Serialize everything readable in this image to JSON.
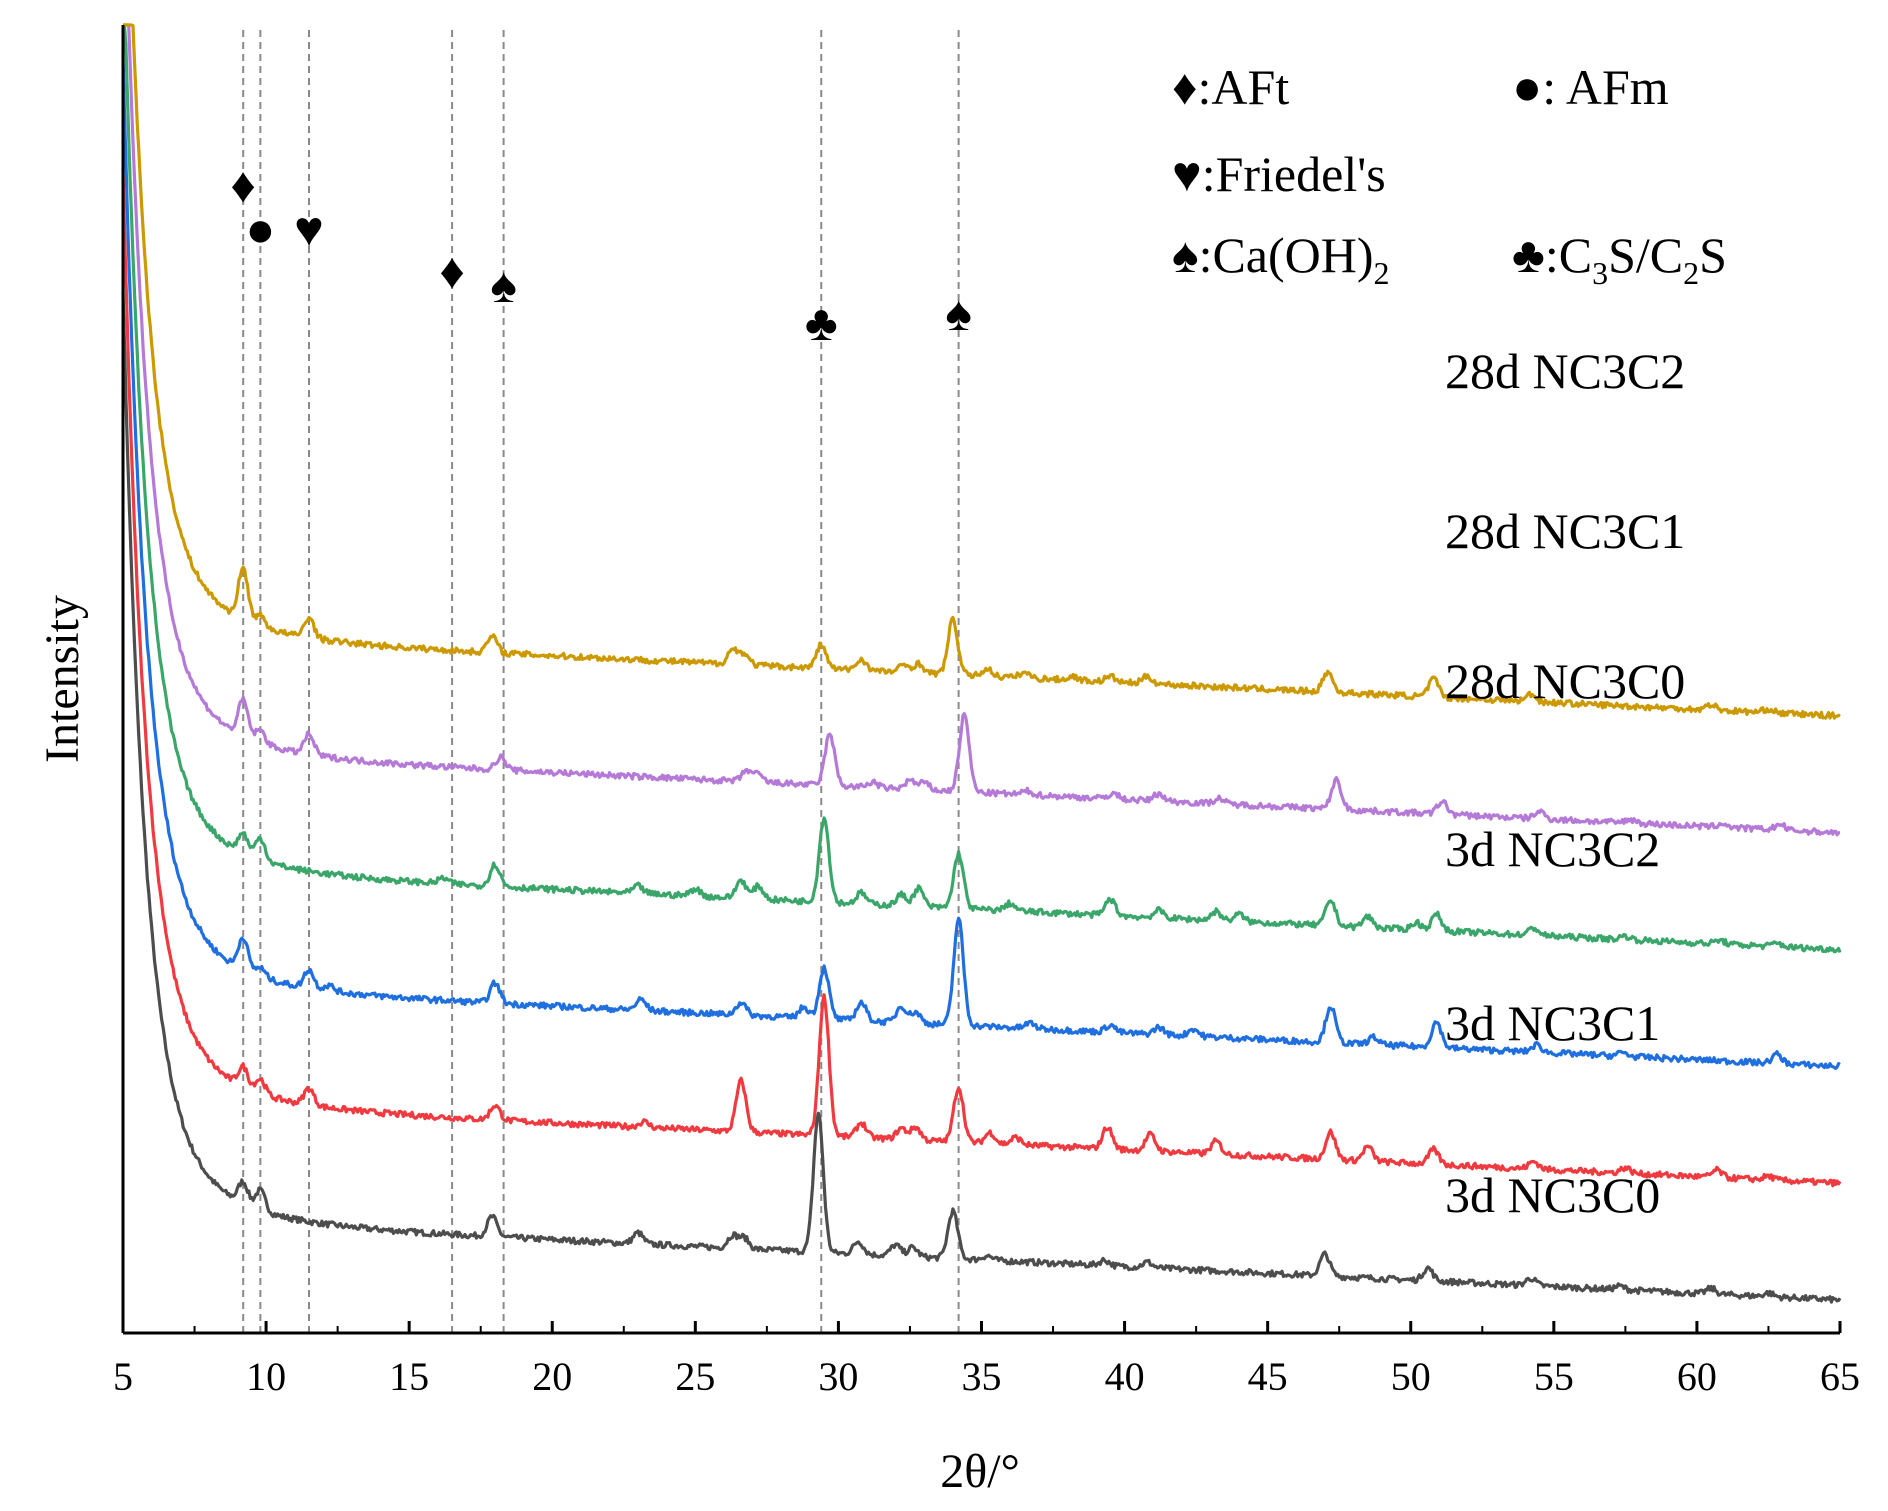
{
  "chart_data": {
    "type": "line",
    "title": "",
    "xlabel": "2θ/°",
    "ylabel": "Intensity",
    "xlim": [
      5,
      65
    ],
    "xticks": [
      "5",
      "10",
      "15",
      "20",
      "25",
      "30",
      "35",
      "40",
      "45",
      "50",
      "55",
      "60",
      "65"
    ],
    "reference_lines": [
      9.2,
      9.8,
      11.5,
      16.5,
      18.3,
      29.4,
      34.2
    ],
    "legend": [
      {
        "symbol": "♦",
        "label": ":AFt"
      },
      {
        "symbol": "●",
        "label": ": AFm"
      },
      {
        "symbol": "♥",
        "label": ":Friedel's"
      },
      {
        "symbol": "♠",
        "label": ":Ca(OH)",
        "subscript": "2"
      },
      {
        "symbol": "♣",
        "label": ":C",
        "sub1": "3",
        "mid": "S/C",
        "sub2": "2",
        "tail": "S"
      }
    ],
    "peak_markers": [
      {
        "symbol": "♦",
        "x": 9.2
      },
      {
        "symbol": "●",
        "x": 9.8
      },
      {
        "symbol": "♥",
        "x": 11.5
      },
      {
        "symbol": "♦",
        "x": 16.5
      },
      {
        "symbol": "♠",
        "x": 18.3
      },
      {
        "symbol": "♣",
        "x": 29.4
      },
      {
        "symbol": "♠",
        "x": 34.2
      }
    ],
    "series": [
      {
        "name": "3d NC3C0",
        "color": "#4d4d4d",
        "offset": 0,
        "peaks": [
          [
            9.2,
            0.6
          ],
          [
            9.8,
            0.55
          ],
          [
            17.9,
            0.55
          ],
          [
            23.0,
            0.3
          ],
          [
            26.3,
            0.35
          ],
          [
            26.7,
            0.3
          ],
          [
            29.3,
            3.8
          ],
          [
            30.7,
            0.35
          ],
          [
            32.0,
            0.3
          ],
          [
            32.6,
            0.25
          ],
          [
            34.0,
            1.3
          ],
          [
            35.2,
            0.12
          ],
          [
            39.3,
            0.15
          ],
          [
            40.8,
            0.15
          ],
          [
            47.0,
            0.6
          ],
          [
            50.6,
            0.35
          ],
          [
            54.2,
            0.2
          ],
          [
            57.3,
            0.1
          ],
          [
            60.5,
            0.15
          ],
          [
            62.5,
            0.1
          ]
        ]
      },
      {
        "name": "3d NC3C1",
        "color": "#f03a3f",
        "offset": 3.2,
        "peaks": [
          [
            9.2,
            0.55
          ],
          [
            9.8,
            0.4
          ],
          [
            11.5,
            0.45
          ],
          [
            18.0,
            0.4
          ],
          [
            23.2,
            0.15
          ],
          [
            26.6,
            1.4
          ],
          [
            29.5,
            3.8
          ],
          [
            30.8,
            0.4
          ],
          [
            32.2,
            0.3
          ],
          [
            32.7,
            0.35
          ],
          [
            34.2,
            1.5
          ],
          [
            35.3,
            0.3
          ],
          [
            36.2,
            0.2
          ],
          [
            39.4,
            0.6
          ],
          [
            40.9,
            0.45
          ],
          [
            43.2,
            0.35
          ],
          [
            47.2,
            0.75
          ],
          [
            48.5,
            0.4
          ],
          [
            50.8,
            0.4
          ],
          [
            54.3,
            0.2
          ],
          [
            57.5,
            0.15
          ],
          [
            60.7,
            0.2
          ],
          [
            62.5,
            0.1
          ]
        ]
      },
      {
        "name": "3d NC3C2",
        "color": "#1f6fe0",
        "offset": 6.4,
        "peaks": [
          [
            9.2,
            0.9
          ],
          [
            9.8,
            0.25
          ],
          [
            11.5,
            0.5
          ],
          [
            12.2,
            0.15
          ],
          [
            18.0,
            0.55
          ],
          [
            23.1,
            0.3
          ],
          [
            26.6,
            0.35
          ],
          [
            28.8,
            0.3
          ],
          [
            29.5,
            1.4
          ],
          [
            30.8,
            0.5
          ],
          [
            32.2,
            0.45
          ],
          [
            32.7,
            0.3
          ],
          [
            34.2,
            2.9
          ],
          [
            36.7,
            0.15
          ],
          [
            39.5,
            0.2
          ],
          [
            41.2,
            0.2
          ],
          [
            42.4,
            0.2
          ],
          [
            47.2,
            1.0
          ],
          [
            48.7,
            0.2
          ],
          [
            50.9,
            0.7
          ],
          [
            54.4,
            0.2
          ],
          [
            57.4,
            0.1
          ],
          [
            62.8,
            0.25
          ]
        ]
      },
      {
        "name": "28d NC3C0",
        "color": "#3aa66a",
        "offset": 9.6,
        "peaks": [
          [
            9.2,
            0.55
          ],
          [
            9.8,
            0.6
          ],
          [
            16.2,
            0.15
          ],
          [
            18.0,
            0.6
          ],
          [
            23.0,
            0.2
          ],
          [
            25.0,
            0.2
          ],
          [
            26.6,
            0.5
          ],
          [
            27.2,
            0.35
          ],
          [
            29.5,
            2.3
          ],
          [
            30.8,
            0.3
          ],
          [
            32.2,
            0.3
          ],
          [
            32.8,
            0.5
          ],
          [
            34.2,
            1.5
          ],
          [
            36.0,
            0.2
          ],
          [
            39.5,
            0.45
          ],
          [
            41.2,
            0.2
          ],
          [
            43.2,
            0.25
          ],
          [
            44.0,
            0.2
          ],
          [
            47.2,
            0.7
          ],
          [
            48.5,
            0.3
          ],
          [
            50.2,
            0.2
          ],
          [
            50.9,
            0.45
          ],
          [
            54.3,
            0.2
          ],
          [
            57.5,
            0.1
          ],
          [
            60.8,
            0.1
          ],
          [
            62.8,
            0.1
          ]
        ]
      },
      {
        "name": "28d NC3C1",
        "color": "#b57ad8",
        "offset": 12.8,
        "peaks": [
          [
            9.2,
            1.0
          ],
          [
            9.8,
            0.35
          ],
          [
            11.5,
            0.55
          ],
          [
            18.2,
            0.35
          ],
          [
            26.8,
            0.3
          ],
          [
            27.2,
            0.2
          ],
          [
            29.7,
            1.4
          ],
          [
            31.2,
            0.15
          ],
          [
            32.5,
            0.25
          ],
          [
            33.0,
            0.2
          ],
          [
            34.4,
            2.1
          ],
          [
            36.6,
            0.1
          ],
          [
            39.6,
            0.15
          ],
          [
            41.2,
            0.2
          ],
          [
            43.3,
            0.15
          ],
          [
            47.4,
            0.8
          ],
          [
            51.1,
            0.35
          ],
          [
            54.5,
            0.2
          ],
          [
            57.7,
            0.1
          ],
          [
            60.9,
            0.1
          ],
          [
            62.9,
            0.15
          ]
        ]
      },
      {
        "name": "28d NC3C2",
        "color": "#cc9900",
        "offset": 16.0,
        "peaks": [
          [
            9.2,
            1.4
          ],
          [
            9.8,
            0.3
          ],
          [
            11.5,
            0.55
          ],
          [
            17.9,
            0.45
          ],
          [
            26.3,
            0.4
          ],
          [
            26.7,
            0.3
          ],
          [
            29.4,
            0.65
          ],
          [
            30.8,
            0.3
          ],
          [
            32.3,
            0.2
          ],
          [
            32.8,
            0.25
          ],
          [
            34.0,
            1.5
          ],
          [
            35.2,
            0.2
          ],
          [
            36.5,
            0.15
          ],
          [
            38.2,
            0.1
          ],
          [
            39.5,
            0.15
          ],
          [
            40.8,
            0.2
          ],
          [
            47.1,
            0.55
          ],
          [
            50.8,
            0.5
          ],
          [
            54.2,
            0.2
          ],
          [
            60.5,
            0.15
          ],
          [
            62.5,
            0.1
          ]
        ]
      }
    ]
  }
}
